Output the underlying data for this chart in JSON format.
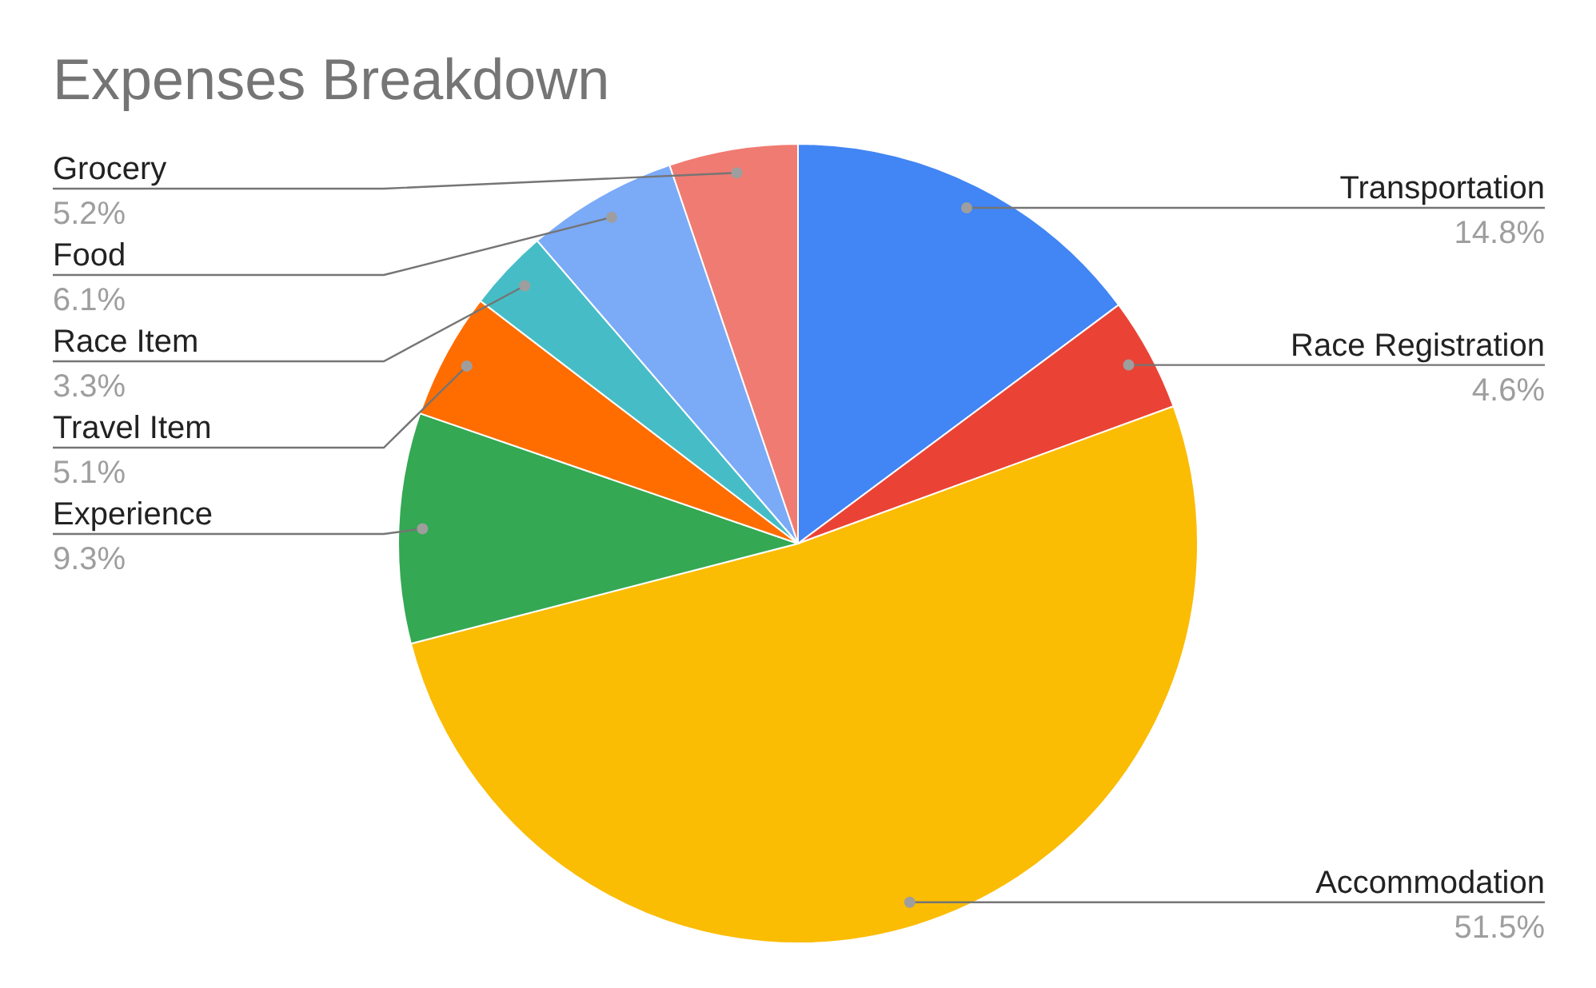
{
  "chart_data": {
    "type": "pie",
    "title": "Expenses Breakdown",
    "categories": [
      "Transportation",
      "Race Registration",
      "Accommodation",
      "Experience",
      "Travel Item",
      "Race Item",
      "Food",
      "Grocery"
    ],
    "values": [
      14.8,
      4.6,
      51.5,
      9.3,
      5.1,
      3.3,
      6.1,
      5.2
    ],
    "colors": [
      "#4285f4",
      "#ea4335",
      "#fbbc04",
      "#34a853",
      "#ff6d01",
      "#46bdc6",
      "#7baaf7",
      "#f07b72"
    ],
    "value_labels": [
      "14.8%",
      "4.6%",
      "51.5%",
      "9.3%",
      "5.1%",
      "3.3%",
      "6.1%",
      "5.2%"
    ]
  }
}
